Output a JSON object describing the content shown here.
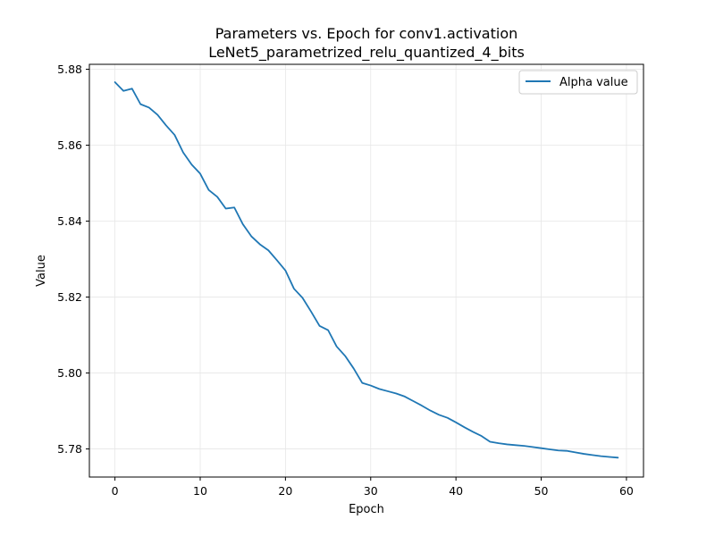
{
  "chart_data": {
    "type": "line",
    "title": "Parameters vs. Epoch for conv1.activation",
    "subtitle": "LeNet5_parametrized_relu_quantized_4_bits",
    "xlabel": "Epoch",
    "ylabel": "Value",
    "xlim": [
      -3,
      62
    ],
    "ylim": [
      5.7726,
      5.8813
    ],
    "xticks": [
      0,
      10,
      20,
      30,
      40,
      50,
      60
    ],
    "yticks": [
      5.78,
      5.8,
      5.82,
      5.84,
      5.86,
      5.88
    ],
    "grid": true,
    "legend_position": "top-right",
    "series": [
      {
        "name": "Alpha value",
        "color": "#1f77b4",
        "x": [
          0,
          1,
          2,
          3,
          4,
          5,
          6,
          7,
          8,
          9,
          10,
          11,
          12,
          13,
          14,
          15,
          16,
          17,
          18,
          19,
          20,
          21,
          22,
          23,
          24,
          25,
          26,
          27,
          28,
          29,
          30,
          31,
          32,
          33,
          34,
          35,
          36,
          37,
          38,
          39,
          40,
          41,
          42,
          43,
          44,
          45,
          46,
          47,
          48,
          49,
          50,
          51,
          52,
          53,
          54,
          55,
          56,
          57,
          58,
          59
        ],
        "y": [
          5.8766,
          5.8743,
          5.8749,
          5.8708,
          5.8699,
          5.868,
          5.8652,
          5.8627,
          5.8581,
          5.8549,
          5.8525,
          5.8482,
          5.8464,
          5.8433,
          5.8436,
          5.8392,
          5.836,
          5.8339,
          5.8323,
          5.8297,
          5.827,
          5.8222,
          5.8198,
          5.8162,
          5.8124,
          5.8113,
          5.807,
          5.8045,
          5.8012,
          5.7974,
          5.7967,
          5.7958,
          5.7952,
          5.7946,
          5.7938,
          5.7926,
          5.7914,
          5.7901,
          5.789,
          5.7882,
          5.787,
          5.7857,
          5.7845,
          5.7834,
          5.7819,
          5.7815,
          5.7812,
          5.781,
          5.7808,
          5.7805,
          5.7802,
          5.7799,
          5.7796,
          5.7795,
          5.7791,
          5.7787,
          5.7784,
          5.7781,
          5.7779,
          5.7777
        ]
      }
    ]
  }
}
